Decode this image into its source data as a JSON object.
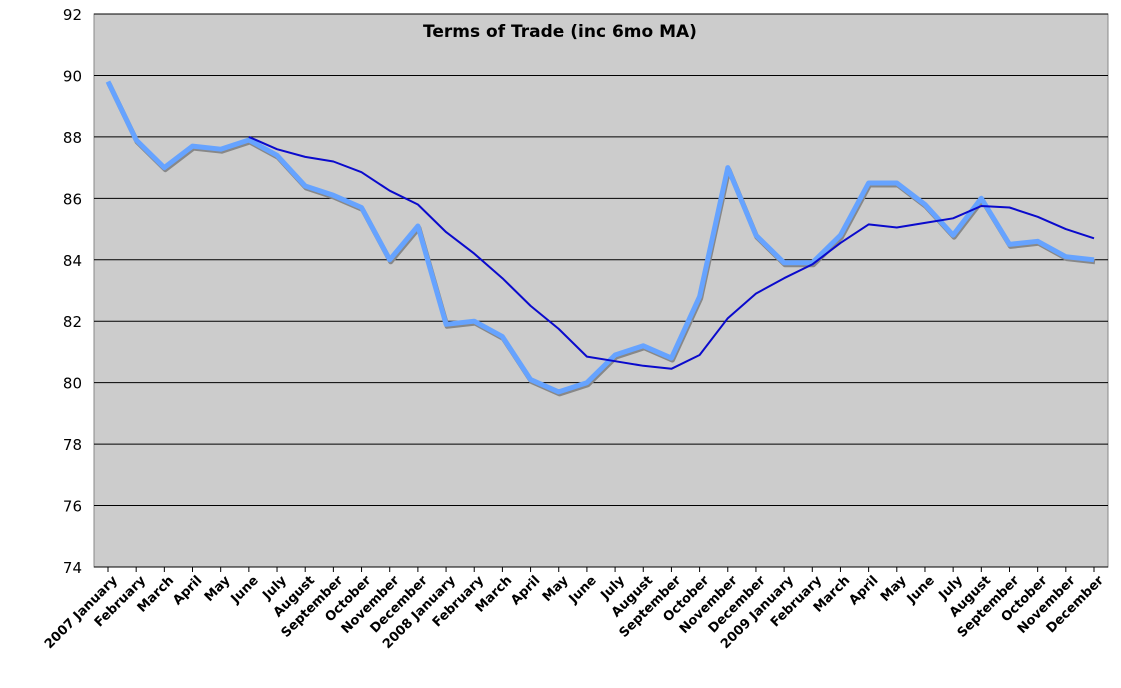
{
  "chart_data": {
    "type": "line",
    "title": "Terms of Trade (inc 6mo MA)",
    "xlabel": "",
    "ylabel": "",
    "ylim": [
      74,
      92
    ],
    "yticks": [
      74,
      76,
      78,
      80,
      82,
      84,
      86,
      88,
      90,
      92
    ],
    "grid": true,
    "legend": "none",
    "categories": [
      "2007 January",
      "February",
      "March",
      "April",
      "May",
      "June",
      "July",
      "August",
      "September",
      "October",
      "November",
      "December",
      "2008 January",
      "February",
      "March",
      "April",
      "May",
      "June",
      "July",
      "August",
      "September",
      "October",
      "November",
      "December",
      "2009 January",
      "February",
      "March",
      "April",
      "May",
      "June",
      "July",
      "August",
      "September",
      "October",
      "November",
      "December"
    ],
    "series": [
      {
        "color": "#66a3ff",
        "values": [
          89.8,
          87.9,
          87.0,
          87.7,
          87.6,
          87.9,
          87.4,
          86.4,
          86.1,
          85.7,
          84.0,
          85.1,
          81.9,
          82.0,
          81.5,
          80.1,
          79.7,
          80.0,
          80.9,
          81.2,
          80.8,
          82.8,
          87.0,
          84.8,
          83.9,
          83.9,
          84.8,
          86.5,
          86.5,
          85.8,
          84.8,
          86.0,
          84.5,
          84.6,
          84.1,
          84.0
        ]
      },
      {
        "color": "#0a0acc",
        "values": [
          null,
          null,
          null,
          null,
          null,
          88.0,
          87.6,
          87.35,
          87.2,
          86.85,
          86.25,
          85.8,
          84.9,
          84.2,
          83.4,
          82.5,
          81.75,
          80.85,
          80.7,
          80.55,
          80.45,
          80.9,
          82.1,
          82.9,
          83.4,
          83.85,
          84.55,
          85.15,
          85.05,
          85.2,
          85.35,
          85.75,
          85.7,
          85.4,
          85.0,
          84.7
        ]
      }
    ],
    "plot_background": "#cccccc"
  }
}
